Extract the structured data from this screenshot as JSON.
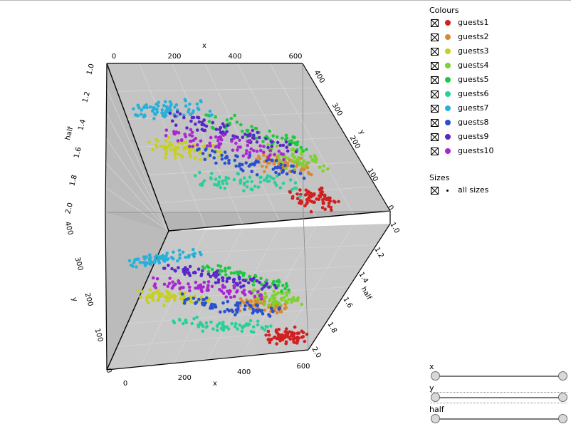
{
  "chart_data": {
    "type": "scatter",
    "dimensions": 3,
    "axes": {
      "x": {
        "label": "x",
        "range": [
          0,
          600
        ],
        "ticks": [
          "0",
          "200",
          "400",
          "600"
        ]
      },
      "y": {
        "label": "y",
        "range": [
          0,
          450
        ],
        "ticks": [
          "0",
          "100",
          "200",
          "300",
          "400"
        ]
      },
      "half": {
        "label": "half",
        "range": [
          1.0,
          2.0
        ],
        "ticks": [
          "1.0",
          "1.2",
          "1.4",
          "1.6",
          "1.8",
          "2.0"
        ]
      }
    },
    "series": [
      {
        "name": "guests1",
        "color": "#d02020",
        "x": [
          460,
          480,
          500,
          520,
          540,
          470,
          490,
          510,
          530,
          550,
          445,
          525
        ],
        "y": [
          60,
          75,
          70,
          85,
          65,
          55,
          90,
          80,
          60,
          75,
          70,
          95
        ]
      },
      {
        "name": "guests2",
        "color": "#d88a30",
        "x": [
          380,
          410,
          440,
          470,
          500,
          390,
          420,
          450,
          480,
          510,
          435
        ],
        "y": [
          185,
          195,
          200,
          190,
          185,
          205,
          198,
          192,
          188,
          180,
          210
        ]
      },
      {
        "name": "guests3",
        "color": "#c5d020",
        "x": [
          60,
          90,
          120,
          150,
          180,
          210,
          100,
          140,
          170,
          80,
          230,
          260
        ],
        "y": [
          210,
          205,
          200,
          210,
          205,
          200,
          215,
          195,
          212,
          198,
          206,
          202
        ]
      },
      {
        "name": "guests4",
        "color": "#80d030",
        "x": [
          420,
          450,
          480,
          510,
          540,
          560,
          460,
          500,
          530,
          490
        ],
        "y": [
          240,
          230,
          220,
          235,
          225,
          215,
          205,
          245,
          230,
          210
        ]
      },
      {
        "name": "guests5",
        "color": "#20c840",
        "x": [
          280,
          320,
          360,
          400,
          440,
          480,
          520,
          340,
          420,
          500
        ],
        "y": [
          330,
          320,
          315,
          305,
          295,
          285,
          270,
          325,
          300,
          280
        ]
      },
      {
        "name": "guests6",
        "color": "#28d09a",
        "x": [
          160,
          200,
          240,
          280,
          320,
          360,
          400,
          440,
          220,
          300,
          380
        ],
        "y": [
          100,
          110,
          105,
          95,
          100,
          110,
          115,
          105,
          95,
          108,
          102
        ]
      },
      {
        "name": "guests7",
        "color": "#28b0d8",
        "x": [
          50,
          70,
          90,
          110,
          130,
          150,
          170,
          200,
          230,
          260,
          100,
          140
        ],
        "y": [
          330,
          340,
          345,
          350,
          355,
          360,
          365,
          370,
          375,
          380,
          338,
          358
        ]
      },
      {
        "name": "guests8",
        "color": "#2850d0",
        "x": [
          200,
          240,
          280,
          320,
          360,
          400,
          440,
          480,
          260,
          340,
          420
        ],
        "y": [
          195,
          185,
          175,
          180,
          190,
          185,
          175,
          170,
          190,
          172,
          180
        ]
      },
      {
        "name": "guests9",
        "color": "#5828c8",
        "x": [
          160,
          200,
          240,
          280,
          320,
          360,
          400,
          440,
          480,
          220,
          300,
          380
        ],
        "y": [
          320,
          315,
          310,
          300,
          295,
          290,
          285,
          280,
          270,
          318,
          302,
          288
        ]
      },
      {
        "name": "guests10",
        "color": "#a828d0",
        "x": [
          120,
          160,
          200,
          240,
          280,
          320,
          360,
          400,
          440,
          180,
          260,
          340
        ],
        "y": [
          260,
          255,
          255,
          250,
          250,
          245,
          240,
          235,
          230,
          258,
          248,
          238
        ]
      }
    ]
  },
  "legend": {
    "colours_title": "Colours",
    "sizes_title": "Sizes",
    "sizes_item": "all sizes"
  },
  "sliders": [
    {
      "label": "x",
      "range_fraction": [
        0.0,
        1.0
      ]
    },
    {
      "label": "y",
      "range_fraction": [
        0.0,
        1.0
      ]
    },
    {
      "label": "half",
      "range_fraction": [
        0.0,
        1.0
      ]
    }
  ]
}
